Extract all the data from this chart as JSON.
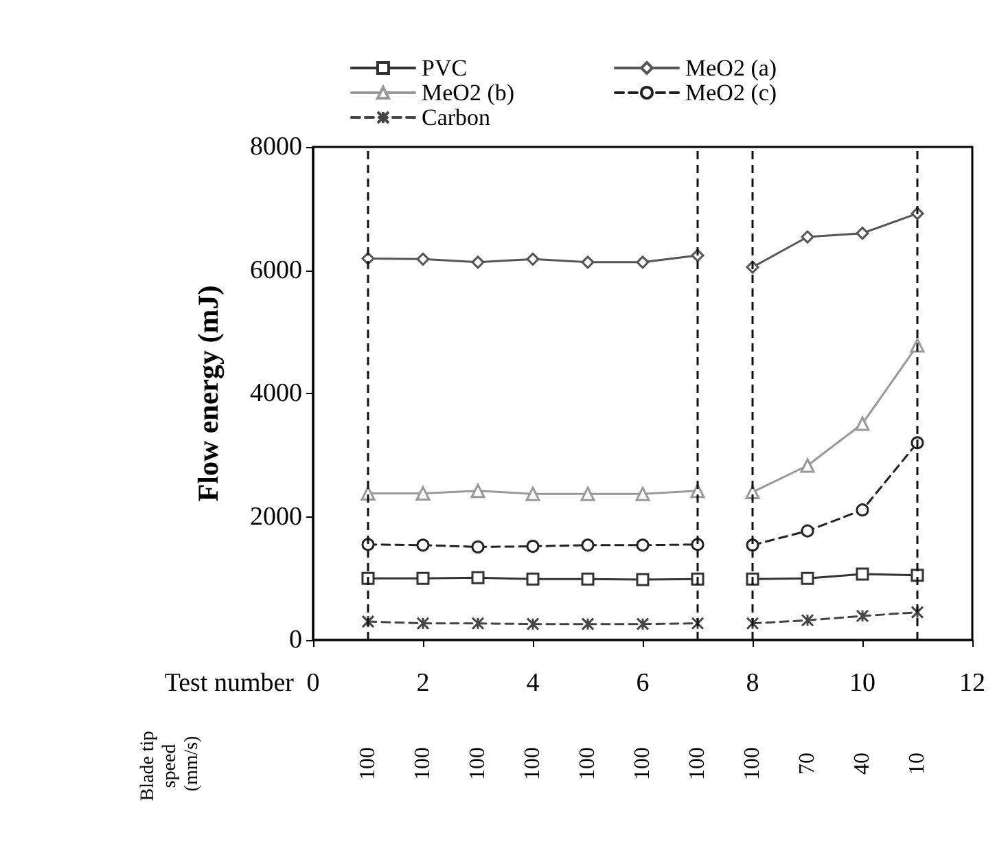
{
  "chart_data": {
    "type": "line",
    "xlabel": "Test number",
    "ylabel": "Flow energy (mJ)",
    "annotations": [
      "Blade tip speed (mm/s)",
      "100",
      "100",
      "100",
      "100",
      "100",
      "100",
      "100",
      "100",
      "70",
      "40",
      "10"
    ],
    "x": [
      1,
      2,
      3,
      4,
      5,
      6,
      7,
      7.5,
      8,
      9,
      10,
      11
    ],
    "series": [
      {
        "name": "PVC",
        "color": "#333333",
        "marker": "square",
        "line_style": "solid",
        "values": [
          1000,
          1000,
          1010,
          990,
          990,
          980,
          990,
          null,
          990,
          1000,
          1070,
          1050
        ]
      },
      {
        "name": "MeO2 (a)",
        "color": "#555555",
        "marker": "diamond",
        "line_style": "solid",
        "values": [
          6190,
          6180,
          6130,
          6180,
          6130,
          6130,
          6240,
          null,
          6050,
          6540,
          6600,
          6920
        ]
      },
      {
        "name": "MeO2 (b)",
        "color": "#999999",
        "marker": "triangle",
        "line_style": "solid",
        "values": [
          2380,
          2380,
          2420,
          2370,
          2370,
          2370,
          2420,
          null,
          2400,
          2830,
          3510,
          4780
        ]
      },
      {
        "name": "MeO2 (c)",
        "color": "#222222",
        "marker": "circle",
        "line_style": "dashed",
        "values": [
          1550,
          1540,
          1510,
          1520,
          1540,
          1540,
          1550,
          null,
          1540,
          1770,
          2110,
          3200
        ]
      },
      {
        "name": "Carbon",
        "color": "#444444",
        "marker": "cross",
        "line_style": "dashed",
        "values": [
          300,
          270,
          270,
          260,
          260,
          260,
          270,
          null,
          270,
          320,
          390,
          450
        ]
      }
    ],
    "xlim": [
      0,
      12
    ],
    "xticks": [
      0,
      2,
      4,
      6,
      8,
      10,
      12
    ],
    "ylim": [
      0,
      8000
    ],
    "yticks": [
      0,
      2000,
      4000,
      6000,
      8000
    ],
    "ref_lines": [
      {
        "axis": "x",
        "value": 1,
        "color": "#111111",
        "line_style": "dashed"
      },
      {
        "axis": "x",
        "value": 7,
        "color": "#111111",
        "line_style": "dashed"
      },
      {
        "axis": "x",
        "value": 8,
        "color": "#111111",
        "line_style": "dashed"
      },
      {
        "axis": "x",
        "value": 11,
        "color": "#111111",
        "line_style": "dashed"
      }
    ],
    "grid": false,
    "legend": "top"
  }
}
